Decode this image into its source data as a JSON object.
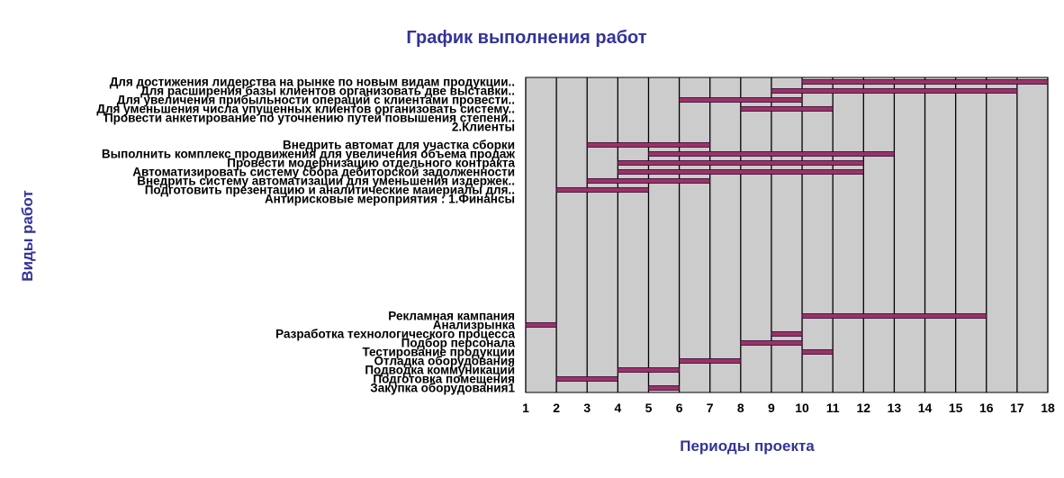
{
  "chart_data": {
    "type": "bar",
    "title": "График выполнения работ",
    "xlabel": "Периоды проекта",
    "ylabel": "Виды работ",
    "xlim": [
      1,
      18
    ],
    "x_ticks": [
      "1",
      "2",
      "3",
      "4",
      "5",
      "6",
      "7",
      "8",
      "9",
      "10",
      "11",
      "12",
      "13",
      "14",
      "15",
      "16",
      "17",
      "18"
    ],
    "colors": {
      "plot_bg": "#cccccc",
      "grid": "#000000",
      "bar_fill": "#993366",
      "bar_stroke": "#330033"
    },
    "tasks": [
      {
        "label": "Для достижения лидерства на рынке по новым видам продукции..",
        "start": 10,
        "end": 18
      },
      {
        "label": "Для расширения  базы клиентов организовать две выставки..",
        "start": 9,
        "end": 17
      },
      {
        "label": "Для увеличения прибыльности операций с клиентами провести..",
        "start": 6,
        "end": 10
      },
      {
        "label": "Для уменьшения числа упущенных клиентов организовать систему..",
        "start": 8,
        "end": 11
      },
      {
        "label": "Провести анкетирование по уточнению путей  повышения степени..",
        "start": null,
        "end": null
      },
      {
        "label": "2.Клиенты",
        "start": null,
        "end": null
      },
      {
        "label": "",
        "start": null,
        "end": null
      },
      {
        "label": "Внедрить автомат для участка сборки",
        "start": 3,
        "end": 7
      },
      {
        "label": "Выполнить комплекс продвижения для увеличения объема продаж",
        "start": 5,
        "end": 13
      },
      {
        "label": "Провести модернизацию отдельного контракта",
        "start": 4,
        "end": 12
      },
      {
        "label": "Автоматизировать систему сбора дебиторской задолженности",
        "start": 4,
        "end": 12
      },
      {
        "label": "Внедрить систему автоматизации  для уменьшения издержек..",
        "start": 3,
        "end": 7
      },
      {
        "label": "Подготовить  презентацию и аналитические маиериалы для..",
        "start": 2,
        "end": 5
      },
      {
        "label": "Антирисковые мероприятия : 1.Финансы",
        "start": null,
        "end": null
      },
      {
        "label": "",
        "start": null,
        "end": null
      },
      {
        "label": "",
        "start": null,
        "end": null
      },
      {
        "label": "",
        "start": null,
        "end": null
      },
      {
        "label": "",
        "start": null,
        "end": null
      },
      {
        "label": "",
        "start": null,
        "end": null
      },
      {
        "label": "",
        "start": null,
        "end": null
      },
      {
        "label": "",
        "start": null,
        "end": null
      },
      {
        "label": "",
        "start": null,
        "end": null
      },
      {
        "label": "",
        "start": null,
        "end": null
      },
      {
        "label": "",
        "start": null,
        "end": null
      },
      {
        "label": "",
        "start": null,
        "end": null
      },
      {
        "label": "",
        "start": null,
        "end": null
      },
      {
        "label": "Рекламная кампания",
        "start": 10,
        "end": 16
      },
      {
        "label": "Анализрынка",
        "start": 1,
        "end": 2
      },
      {
        "label": "Разработка технологического процесса",
        "start": 9,
        "end": 10
      },
      {
        "label": "Подбор персонала",
        "start": 8,
        "end": 10
      },
      {
        "label": "Тестирование продукции",
        "start": 10,
        "end": 11
      },
      {
        "label": "Отладка оборудования",
        "start": 6,
        "end": 8
      },
      {
        "label": "Подводка коммуникаций",
        "start": 4,
        "end": 6
      },
      {
        "label": "Подготовка помещения",
        "start": 2,
        "end": 4
      },
      {
        "label": "Закупка оборудования1",
        "start": 5,
        "end": 6
      }
    ]
  }
}
